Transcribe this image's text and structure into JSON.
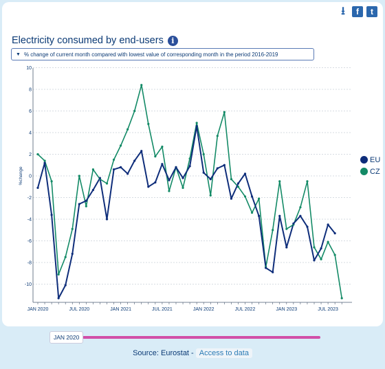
{
  "title": "Electricity consumed by end-users",
  "info_icon": "info-icon",
  "selector_label": "% change of current month compared with lowest value of corresponding month in the period 2016-2019",
  "share_icons": [
    "download-icon",
    "facebook-icon",
    "twitter-icon"
  ],
  "slider_label": "JAN 2020",
  "source_text": "Source: Eurostat -",
  "source_link": "Access to data",
  "colors": {
    "eu": "#0e2d7a",
    "cz": "#138a66",
    "slider": "#d14fa8",
    "accent": "#0b3a75"
  },
  "chart_data": {
    "type": "line",
    "ylabel": "%change",
    "ylim": [
      -11.5,
      10
    ],
    "yticks": [
      10,
      8,
      6,
      4,
      2,
      0,
      -2,
      -4,
      -6,
      -8,
      -10
    ],
    "xtick_labels": [
      "JAN 2020",
      "JUL 2020",
      "JAN 2021",
      "JUL 2021",
      "JAN 2022",
      "JUL 2022",
      "JAN 2023",
      "JUL 2023"
    ],
    "grid": true,
    "legend": "right",
    "series": [
      {
        "name": "EU",
        "color": "#0e2d7a",
        "values": [
          -1.1,
          1.2,
          -3.6,
          -11.3,
          -10.1,
          -7.2,
          -2.6,
          -2.3,
          -1.3,
          -0.2,
          -4.0,
          0.6,
          0.8,
          0.2,
          1.4,
          2.3,
          -1.0,
          -0.6,
          1.1,
          -0.4,
          0.8,
          -0.2,
          0.9,
          4.6,
          0.3,
          -0.3,
          0.7,
          1.0,
          -2.1,
          -0.7,
          0.2,
          -1.9,
          -3.7,
          -8.5,
          -8.9,
          -3.7,
          -6.6,
          -4.4,
          -3.7,
          -4.7,
          -7.8,
          -6.7,
          -4.5,
          -5.3
        ]
      },
      {
        "name": "CZ",
        "color": "#138a66",
        "values": [
          2.0,
          1.4,
          -0.5,
          -9.1,
          -7.5,
          -4.9,
          0.0,
          -2.8,
          0.6,
          -0.3,
          -0.7,
          1.5,
          2.8,
          4.3,
          6.0,
          8.4,
          4.8,
          1.8,
          2.7,
          -1.4,
          0.8,
          -1.1,
          1.6,
          4.9,
          2.0,
          -1.8,
          3.7,
          5.9,
          -0.3,
          -1.0,
          -1.9,
          -3.4,
          -2.1,
          -8.4,
          -5.0,
          -0.5,
          -4.9,
          -4.5,
          -2.9,
          -0.5,
          -6.6,
          -7.7,
          -6.1,
          -7.3,
          -11.3
        ]
      }
    ]
  }
}
